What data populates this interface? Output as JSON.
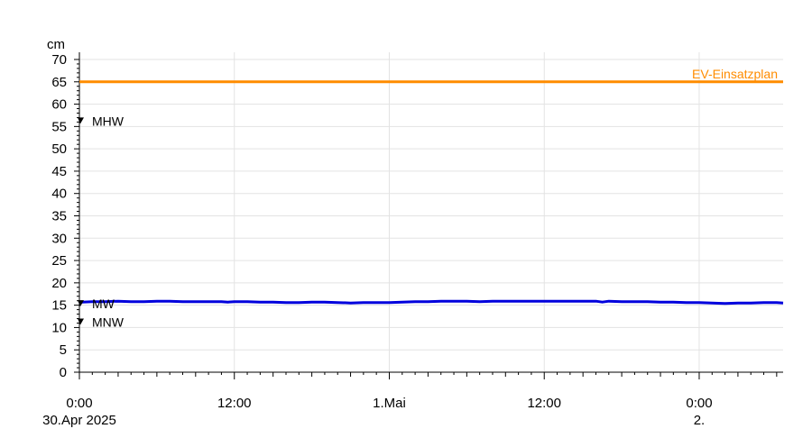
{
  "chart_data": {
    "type": "line",
    "ylabel": "cm",
    "ylim": [
      0,
      70
    ],
    "yticks": [
      0,
      5,
      10,
      15,
      20,
      25,
      30,
      35,
      40,
      45,
      50,
      55,
      60,
      65,
      70
    ],
    "xlim_hours": [
      0,
      54.5
    ],
    "grid": true,
    "x_ticks": [
      {
        "hour": 0,
        "label": "0:00",
        "sublabel": "30.Apr 2025"
      },
      {
        "hour": 12,
        "label": "12:00",
        "sublabel": ""
      },
      {
        "hour": 24,
        "label": "1.Mai",
        "sublabel": ""
      },
      {
        "hour": 36,
        "label": "12:00",
        "sublabel": ""
      },
      {
        "hour": 48,
        "label": "0:00",
        "sublabel": "2."
      }
    ],
    "series": [
      {
        "color": "#0000dd",
        "points": [
          [
            0.0,
            15.3
          ],
          [
            0.2,
            15.7
          ],
          [
            1,
            15.8
          ],
          [
            2,
            15.8
          ],
          [
            3,
            15.9
          ],
          [
            4,
            15.8
          ],
          [
            5,
            15.8
          ],
          [
            6,
            15.9
          ],
          [
            7,
            15.9
          ],
          [
            8,
            15.8
          ],
          [
            9,
            15.8
          ],
          [
            10,
            15.8
          ],
          [
            11,
            15.8
          ],
          [
            11.5,
            15.7
          ],
          [
            12,
            15.8
          ],
          [
            13,
            15.8
          ],
          [
            14,
            15.7
          ],
          [
            15,
            15.7
          ],
          [
            16,
            15.6
          ],
          [
            17,
            15.6
          ],
          [
            18,
            15.7
          ],
          [
            19,
            15.7
          ],
          [
            20,
            15.6
          ],
          [
            21,
            15.5
          ],
          [
            22,
            15.6
          ],
          [
            23,
            15.6
          ],
          [
            24,
            15.6
          ],
          [
            25,
            15.7
          ],
          [
            26,
            15.8
          ],
          [
            27,
            15.8
          ],
          [
            28,
            15.9
          ],
          [
            29,
            15.9
          ],
          [
            30,
            15.9
          ],
          [
            31,
            15.8
          ],
          [
            32,
            15.9
          ],
          [
            33,
            15.9
          ],
          [
            34,
            15.9
          ],
          [
            35,
            15.9
          ],
          [
            36,
            15.9
          ],
          [
            37,
            15.9
          ],
          [
            38,
            15.9
          ],
          [
            39,
            15.9
          ],
          [
            40,
            15.9
          ],
          [
            40.5,
            15.7
          ],
          [
            41,
            15.9
          ],
          [
            42,
            15.8
          ],
          [
            43,
            15.8
          ],
          [
            44,
            15.8
          ],
          [
            45,
            15.7
          ],
          [
            46,
            15.7
          ],
          [
            47,
            15.6
          ],
          [
            48,
            15.6
          ],
          [
            49,
            15.5
          ],
          [
            50,
            15.4
          ],
          [
            51,
            15.5
          ],
          [
            52,
            15.5
          ],
          [
            53,
            15.6
          ],
          [
            54,
            15.6
          ],
          [
            54.5,
            15.5
          ]
        ]
      }
    ],
    "reference_lines": [
      {
        "name": "EV-Einsatzplan",
        "value": 65,
        "color": "#ff8c00"
      }
    ],
    "reference_markers": [
      {
        "name": "MHW",
        "value": 56.2
      },
      {
        "name": "MW",
        "value": 15.3
      },
      {
        "name": "MNW",
        "value": 11.2
      }
    ]
  }
}
